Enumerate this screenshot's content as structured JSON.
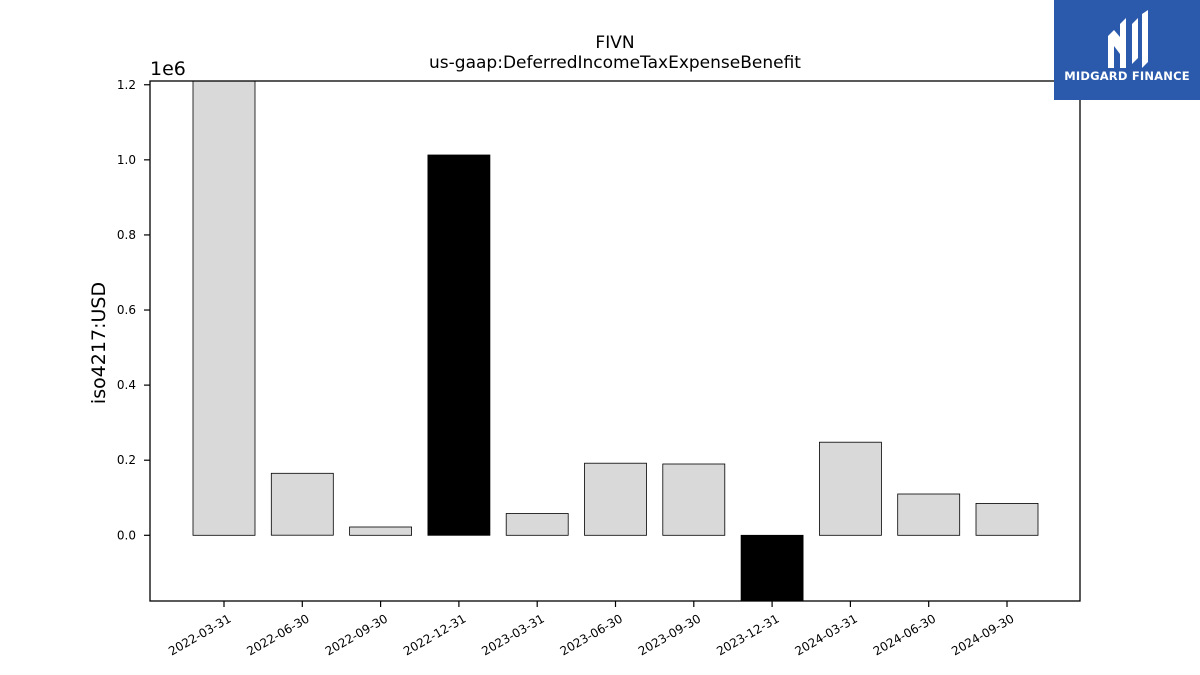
{
  "chart_data": {
    "type": "bar",
    "title": "FIVN",
    "subtitle": "us-gaap:DeferredIncomeTaxExpenseBenefit",
    "ylabel": "iso4217:USD",
    "xlabel": "",
    "scale_label": "1e6",
    "scale_factor": 1000000,
    "ylim": [
      -175000,
      1210000
    ],
    "yticks": [
      0.0,
      0.2,
      0.4,
      0.6,
      0.8,
      1.0,
      1.2
    ],
    "ytick_labels": [
      "0.0",
      "0.2",
      "0.4",
      "0.6",
      "0.8",
      "1.0",
      "1.2"
    ],
    "categories": [
      "2022-03-31",
      "2022-06-30",
      "2022-09-30",
      "2022-12-31",
      "2023-03-31",
      "2023-06-30",
      "2023-09-30",
      "2023-12-31",
      "2024-03-31",
      "2024-06-30",
      "2024-09-30"
    ],
    "values": [
      1210000,
      165000,
      22000,
      1013000,
      58000,
      192000,
      190000,
      -175000,
      248000,
      110000,
      85000
    ],
    "highlight": [
      false,
      false,
      false,
      true,
      false,
      false,
      false,
      true,
      false,
      false,
      false
    ],
    "colors": {
      "default": "#d9d9d9",
      "highlight": "#000000",
      "edge": "#000000"
    },
    "grid": false,
    "legend": "none"
  },
  "logo": {
    "text": "MIDGARD FINANCE",
    "background": "#2b5aac",
    "icon": "midgard-logo-icon"
  }
}
